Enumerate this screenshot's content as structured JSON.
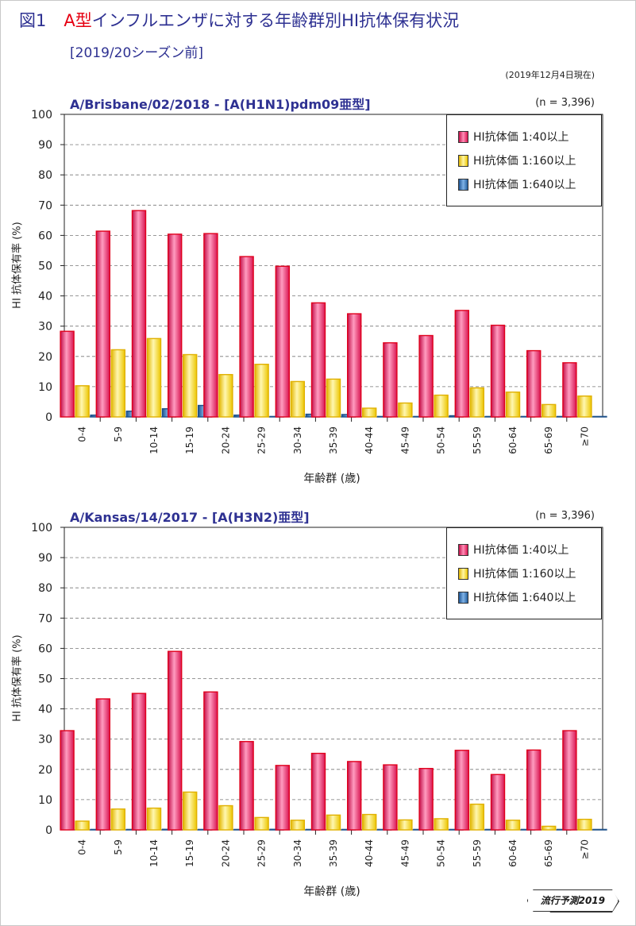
{
  "figure": {
    "number": "図1",
    "title_type": "A型",
    "title_rest": "インフルエンザに対する年齢群別HI抗体保有状況",
    "subtitle": "[2019/20シーズン前]",
    "date_note": "(2019年12月4日現在)",
    "badge": "流行予測2019"
  },
  "colors": {
    "series_1_40": "#e8195a",
    "series_1_160": "#f5d20a",
    "series_1_640": "#2a6db5",
    "title": "#2e3192",
    "accent_red": "#e60012"
  },
  "chart_data": [
    {
      "type": "bar",
      "title": "A/Brisbane/02/2018 - [A(H1N1)pdm09亜型]",
      "note": "(n = 3,396)",
      "xlabel": "年齢群 (歳)",
      "ylabel": "HI 抗体保有率 (%)",
      "ylim": [
        0,
        100
      ],
      "yticks": [
        "0",
        "10",
        "20",
        "30",
        "40",
        "50",
        "60",
        "70",
        "80",
        "90",
        "100"
      ],
      "grid": true,
      "legend_position": "top-right",
      "categories": [
        "0-4",
        "5-9",
        "10-14",
        "15-19",
        "20-24",
        "25-29",
        "30-34",
        "35-39",
        "40-44",
        "45-49",
        "50-54",
        "55-59",
        "60-64",
        "65-69",
        "≥70"
      ],
      "series": [
        {
          "name": "HI抗体価 1:40以上",
          "values": [
            28.3,
            61.4,
            68.2,
            60.4,
            60.6,
            53.0,
            49.8,
            37.7,
            34.1,
            24.5,
            26.9,
            35.2,
            30.3,
            21.9,
            17.9
          ]
        },
        {
          "name": "HI抗体価 1:160以上",
          "values": [
            10.3,
            22.2,
            25.9,
            20.6,
            14.0,
            17.4,
            11.7,
            12.5,
            2.9,
            4.6,
            7.2,
            9.6,
            8.2,
            4.1,
            6.9
          ]
        },
        {
          "name": "HI抗体価 1:640以上",
          "values": [
            0.6,
            1.9,
            2.7,
            3.8,
            0.6,
            0.1,
            0.9,
            0.8,
            0.0,
            0.0,
            0.4,
            0.0,
            0.0,
            0.0,
            0.0
          ]
        }
      ]
    },
    {
      "type": "bar",
      "title": "A/Kansas/14/2017 - [A(H3N2)亜型]",
      "note": "(n = 3,396)",
      "xlabel": "年齢群 (歳)",
      "ylabel": "HI 抗体保有率 (%)",
      "ylim": [
        0,
        100
      ],
      "yticks": [
        "0",
        "10",
        "20",
        "30",
        "40",
        "50",
        "60",
        "70",
        "80",
        "90",
        "100"
      ],
      "grid": true,
      "legend_position": "top-right",
      "categories": [
        "0-4",
        "5-9",
        "10-14",
        "15-19",
        "20-24",
        "25-29",
        "30-34",
        "35-39",
        "40-44",
        "45-49",
        "50-54",
        "55-59",
        "60-64",
        "65-69",
        "≥70"
      ],
      "series": [
        {
          "name": "HI抗体価 1:40以上",
          "values": [
            32.8,
            43.3,
            45.1,
            59.0,
            45.6,
            29.2,
            21.3,
            25.3,
            22.6,
            21.5,
            20.3,
            26.3,
            18.3,
            26.4,
            32.8
          ]
        },
        {
          "name": "HI抗体価 1:160以上",
          "values": [
            2.9,
            6.9,
            7.2,
            12.5,
            8.0,
            4.1,
            3.2,
            4.9,
            5.1,
            3.3,
            3.7,
            8.5,
            3.2,
            1.2,
            3.5
          ]
        },
        {
          "name": "HI抗体価 1:640以上",
          "values": [
            0.0,
            0.0,
            0.2,
            0.0,
            0.0,
            0.2,
            0.0,
            0.0,
            0.0,
            0.0,
            0.0,
            0.0,
            0.0,
            0.0,
            0.0
          ]
        }
      ]
    }
  ]
}
